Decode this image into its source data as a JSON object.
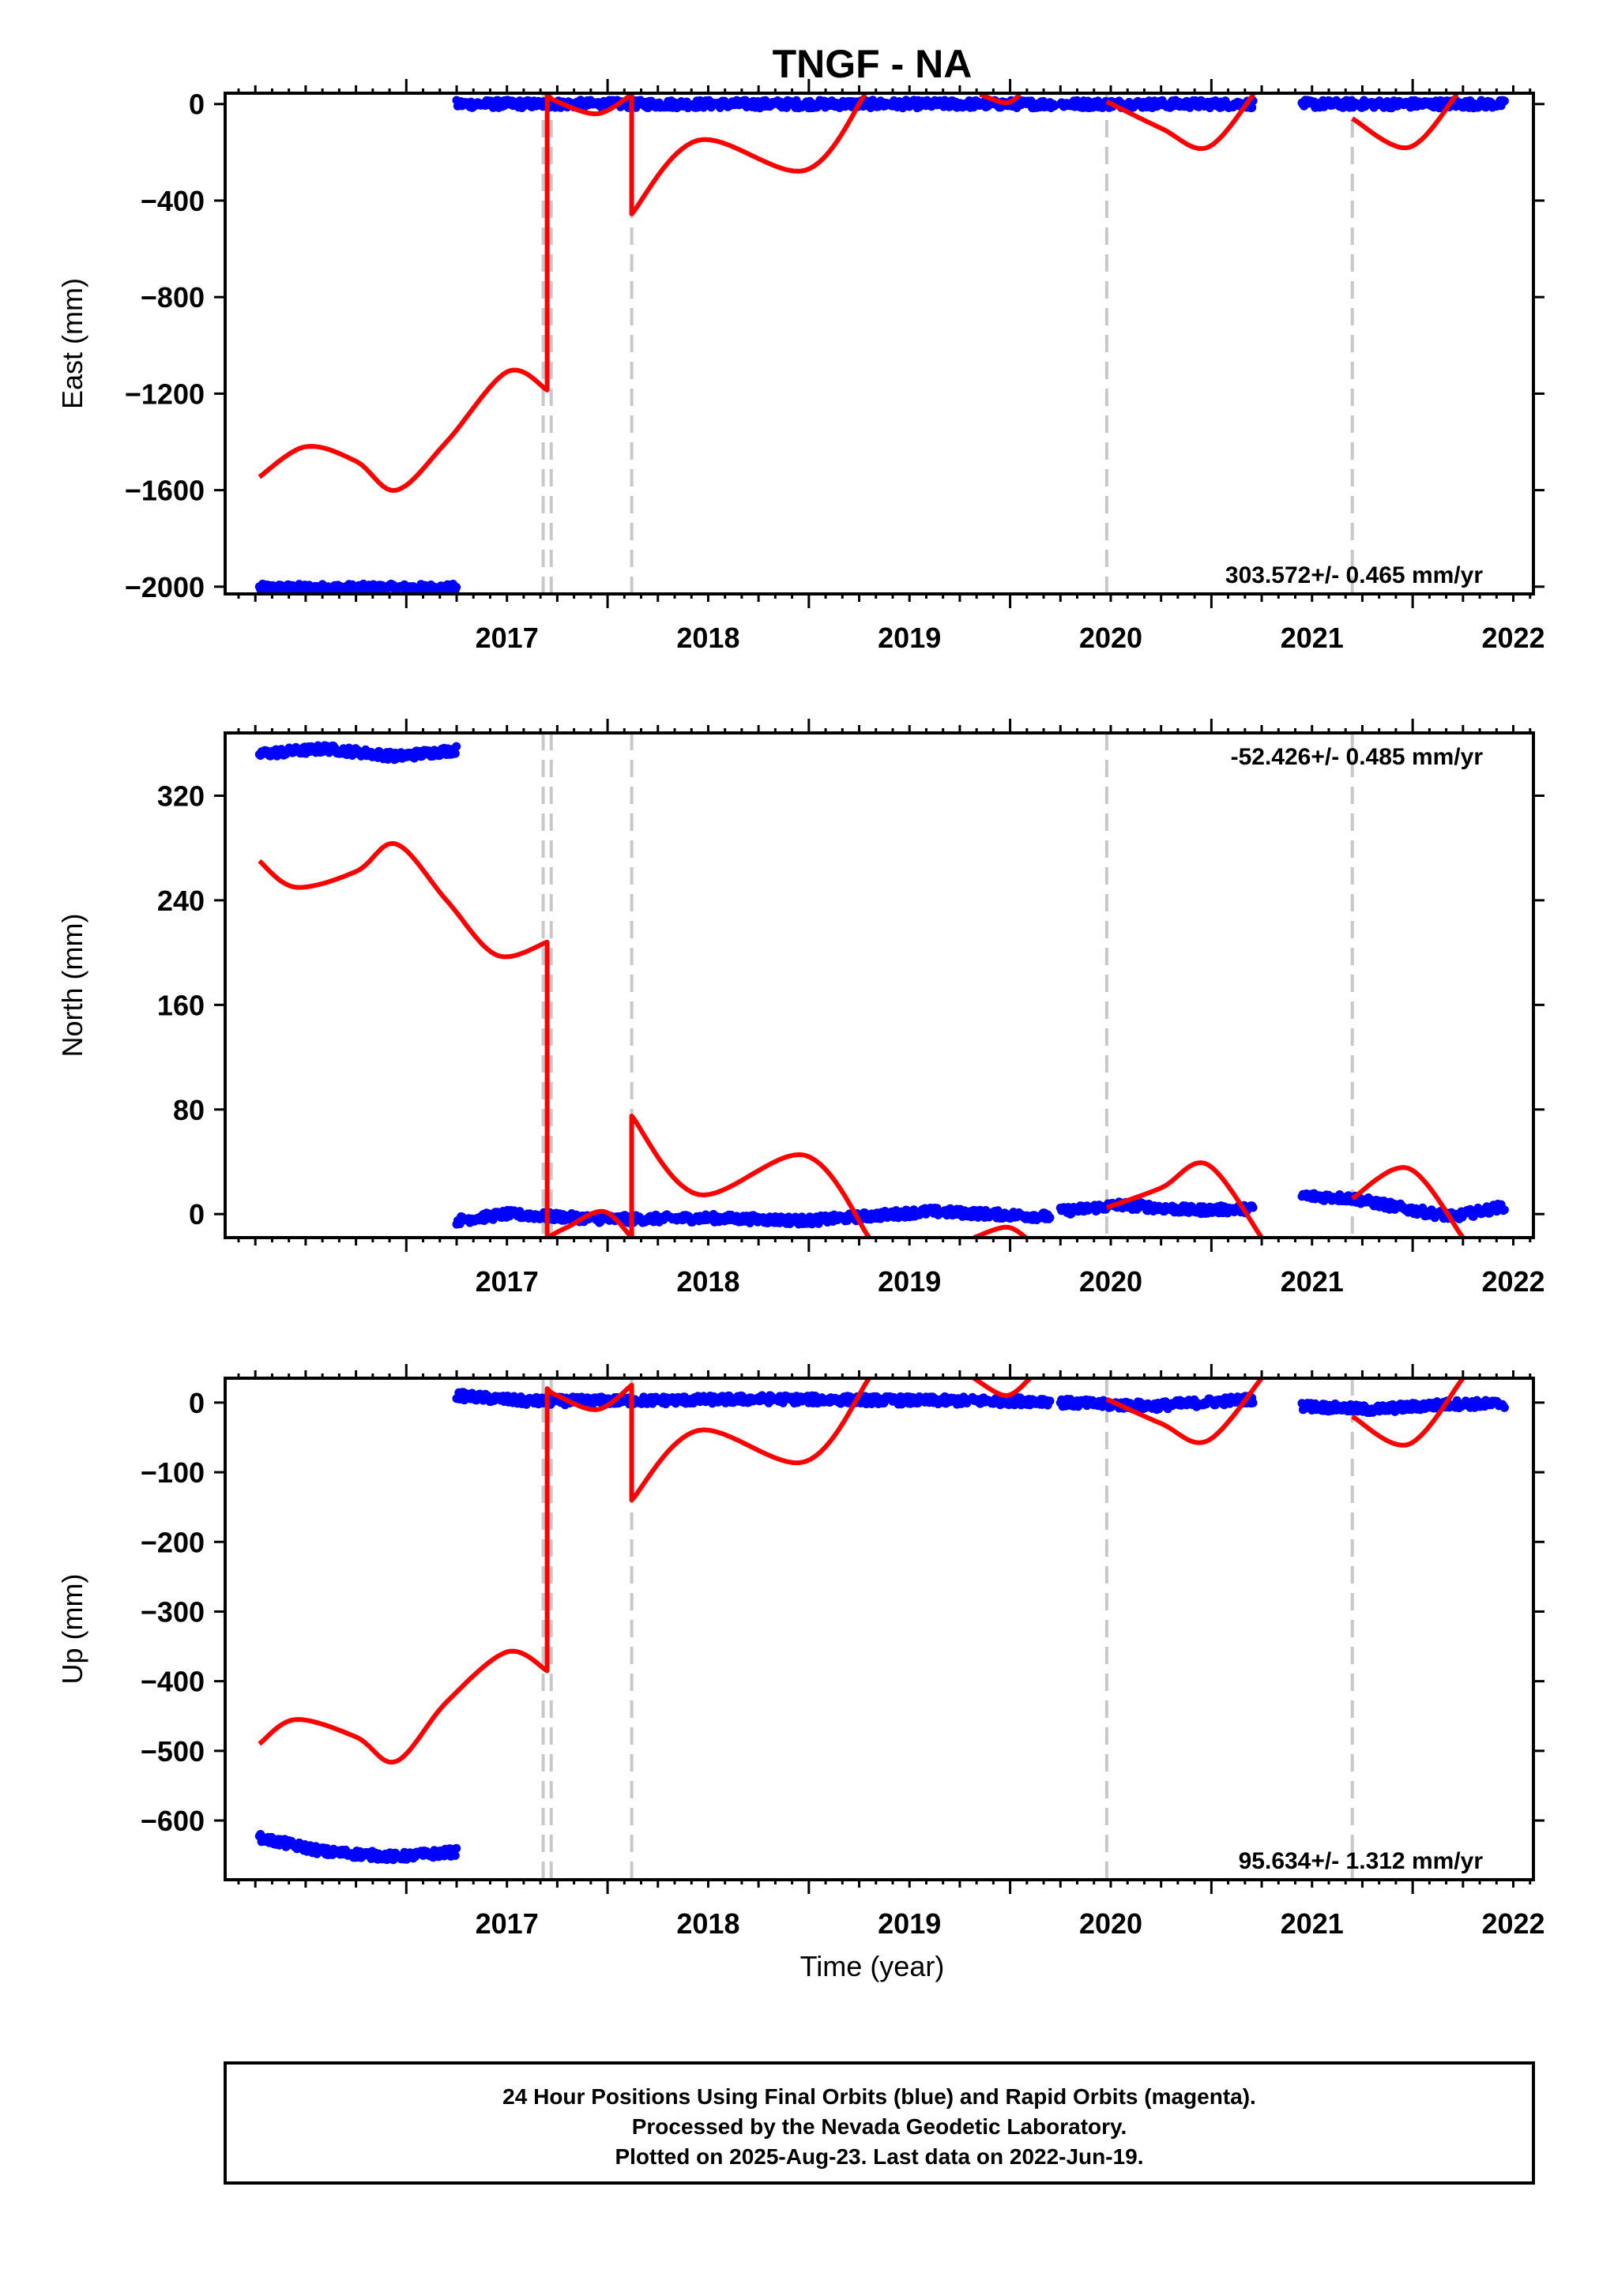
{
  "title": "TNGF - NA",
  "xlabel": "Time (year)",
  "footer": [
    "24 Hour Positions Using Final Orbits (blue) and Rapid Orbits (magenta).",
    "Processed by the Nevada Geodetic Laboratory.",
    "Plotted on 2025-Aug-23. Last data on 2022-Jun-19."
  ],
  "colors": {
    "data": "#0000ff",
    "model": "#ff0000",
    "offset": "#c8c8c8",
    "frame": "#000000"
  },
  "chart_data": [
    {
      "type": "scatter",
      "name": "east",
      "ylabel": "East (mm)",
      "rate": "303.572+/- 0.465 mm/yr",
      "rate_position": "bottom-right",
      "xlim": [
        2016.1,
        2022.6
      ],
      "ylim": [
        -2030,
        45
      ],
      "yticks": [
        0,
        -400,
        -800,
        -1200,
        -1600,
        -2000
      ],
      "xticks": [
        2017,
        2018,
        2019,
        2020,
        2021,
        2022
      ],
      "offsets": [
        2017.68,
        2017.72,
        2018.12,
        2020.48,
        2021.7
      ],
      "data_segments": [
        {
          "x": [
            2016.27,
            2017.25
          ],
          "y": [
            -2005,
            -2005
          ]
        },
        {
          "x": [
            2017.25,
            2020.22
          ],
          "y": [
            0,
            0
          ]
        },
        {
          "x": [
            2020.25,
            2021.21
          ],
          "y": [
            0,
            0
          ]
        },
        {
          "x": [
            2021.45,
            2022.46
          ],
          "y": [
            0,
            0
          ]
        }
      ],
      "model_segments": [
        {
          "x": [
            2016.27,
            2016.5,
            2016.75,
            2016.95,
            2017.2,
            2017.5,
            2017.7
          ],
          "y": [
            -1545,
            -1420,
            -1480,
            -1600,
            -1400,
            -1110,
            -1185
          ]
        },
        {
          "x": [
            2017.7,
            2017.75,
            2017.95,
            2018.12
          ],
          "y": [
            40,
            10,
            -40,
            40
          ]
        },
        {
          "x": [
            2018.12,
            2018.45,
            2018.98,
            2019.28
          ],
          "y": [
            -455,
            -150,
            -275,
            40
          ]
        },
        {
          "x": [
            2019.85,
            2019.98,
            2020.05
          ],
          "y": [
            40,
            5,
            40
          ]
        },
        {
          "x": [
            2020.48,
            2020.75,
            2020.98,
            2021.21
          ],
          "y": [
            10,
            -100,
            -180,
            40
          ]
        },
        {
          "x": [
            2021.7,
            2021.98,
            2022.22
          ],
          "y": [
            -60,
            -180,
            40
          ]
        }
      ]
    },
    {
      "type": "scatter",
      "name": "north",
      "ylabel": "North (mm)",
      "rate": "-52.426+/- 0.485 mm/yr",
      "rate_position": "top-right",
      "xlim": [
        2016.1,
        2022.6
      ],
      "ylim": [
        -18,
        368
      ],
      "yticks": [
        320,
        240,
        160,
        80,
        0
      ],
      "xticks": [
        2017,
        2018,
        2019,
        2020,
        2021,
        2022
      ],
      "offsets": [
        2017.68,
        2017.72,
        2018.12,
        2020.48,
        2021.7
      ],
      "data_segments": [
        {
          "x": [
            2016.27,
            2016.6,
            2016.95,
            2017.25
          ],
          "y": [
            352,
            356,
            350,
            355
          ]
        },
        {
          "x": [
            2017.25,
            2017.5,
            2018.0,
            2018.5,
            2019.0,
            2019.6,
            2020.2
          ],
          "y": [
            -5,
            0,
            -4,
            -3,
            -5,
            2,
            -2
          ]
        },
        {
          "x": [
            2020.25,
            2020.55,
            2020.9,
            2021.21
          ],
          "y": [
            2,
            7,
            3,
            4
          ]
        },
        {
          "x": [
            2021.45,
            2021.7,
            2022.0,
            2022.2,
            2022.46
          ],
          "y": [
            14,
            12,
            3,
            -2,
            6
          ]
        }
      ],
      "model_segments": [
        {
          "x": [
            2016.27,
            2016.45,
            2016.75,
            2016.95,
            2017.2,
            2017.45,
            2017.7
          ],
          "y": [
            270,
            250,
            262,
            283,
            240,
            198,
            208
          ]
        },
        {
          "x": [
            2017.7,
            2017.8,
            2017.98,
            2018.12
          ],
          "y": [
            -18,
            -10,
            2,
            -18
          ]
        },
        {
          "x": [
            2018.12,
            2018.45,
            2018.98,
            2019.3
          ],
          "y": [
            75,
            15,
            45,
            -18
          ]
        },
        {
          "x": [
            2019.82,
            2019.98,
            2020.08
          ],
          "y": [
            -18,
            -10,
            -18
          ]
        },
        {
          "x": [
            2020.48,
            2020.75,
            2020.98,
            2021.25
          ],
          "y": [
            5,
            20,
            38,
            -18
          ]
        },
        {
          "x": [
            2021.7,
            2021.98,
            2022.25
          ],
          "y": [
            12,
            35,
            -18
          ]
        }
      ]
    },
    {
      "type": "scatter",
      "name": "up",
      "ylabel": "Up (mm)",
      "rate": "95.634+/- 1.312 mm/yr",
      "rate_position": "bottom-right",
      "xlim": [
        2016.1,
        2022.6
      ],
      "ylim": [
        -685,
        35
      ],
      "yticks": [
        0,
        -100,
        -200,
        -300,
        -400,
        -500,
        -600
      ],
      "xticks": [
        2017,
        2018,
        2019,
        2020,
        2021,
        2022
      ],
      "offsets": [
        2017.68,
        2017.72,
        2018.12,
        2020.48,
        2021.7
      ],
      "data_segments": [
        {
          "x": [
            2016.27,
            2016.6,
            2016.95,
            2017.25
          ],
          "y": [
            -625,
            -645,
            -652,
            -645
          ]
        },
        {
          "x": [
            2017.25,
            2017.6,
            2018.2,
            2018.8,
            2019.5,
            2020.2
          ],
          "y": [
            10,
            2,
            3,
            5,
            3,
            2
          ]
        },
        {
          "x": [
            2020.25,
            2020.7,
            2021.21
          ],
          "y": [
            0,
            -5,
            5
          ]
        },
        {
          "x": [
            2021.45,
            2021.8,
            2022.2,
            2022.46
          ],
          "y": [
            -5,
            -10,
            -2,
            -2
          ]
        }
      ],
      "model_segments": [
        {
          "x": [
            2016.27,
            2016.45,
            2016.75,
            2016.95,
            2017.2,
            2017.5,
            2017.7
          ],
          "y": [
            -490,
            -455,
            -480,
            -515,
            -430,
            -358,
            -385
          ]
        },
        {
          "x": [
            2017.7,
            2017.75,
            2017.95,
            2018.12
          ],
          "y": [
            20,
            10,
            -10,
            25
          ]
        },
        {
          "x": [
            2018.12,
            2018.45,
            2018.98,
            2019.3
          ],
          "y": [
            -140,
            -40,
            -85,
            35
          ]
        },
        {
          "x": [
            2019.82,
            2019.98,
            2020.1
          ],
          "y": [
            35,
            10,
            35
          ]
        },
        {
          "x": [
            2020.48,
            2020.75,
            2020.98,
            2021.25
          ],
          "y": [
            5,
            -30,
            -55,
            35
          ]
        },
        {
          "x": [
            2021.7,
            2021.98,
            2022.25
          ],
          "y": [
            -20,
            -60,
            35
          ]
        }
      ]
    }
  ]
}
